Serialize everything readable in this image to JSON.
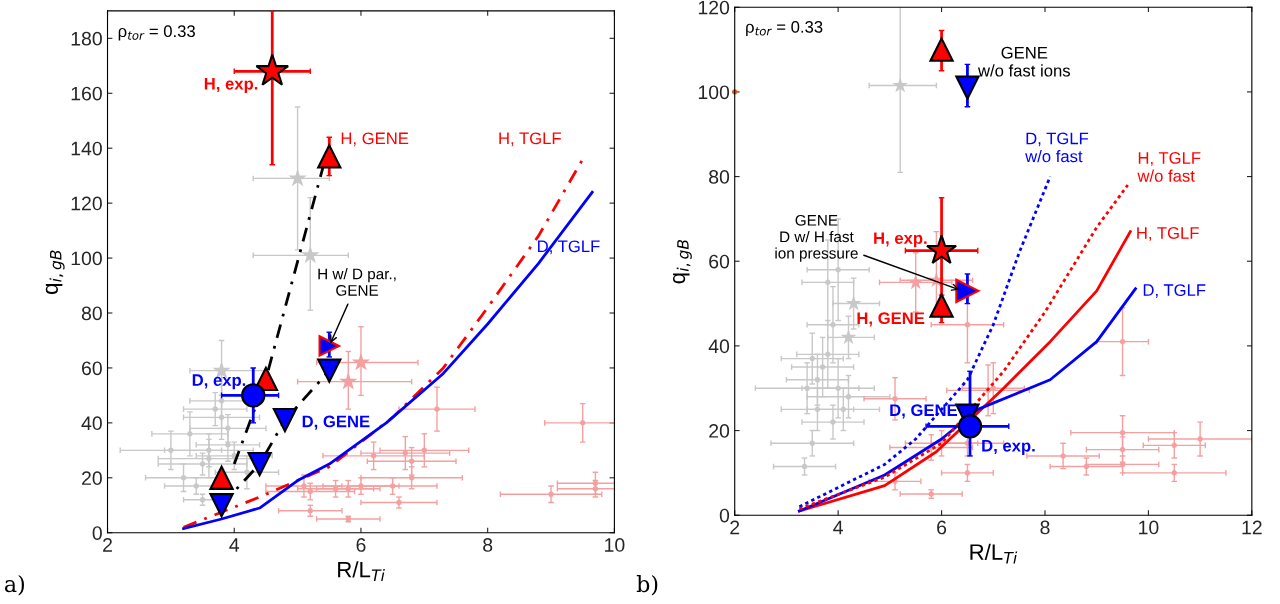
{
  "chart_data": [
    {
      "type": "scatter",
      "xlabel": "R/L$_{Ti}$",
      "ylabel": "q$_{i,gB}$",
      "xlim": [
        2,
        10
      ],
      "xticks": [
        2,
        4,
        6,
        8,
        10
      ],
      "ylim": [
        0,
        190
      ],
      "yticks": [
        0,
        20,
        40,
        60,
        80,
        100,
        120,
        140,
        160,
        180
      ],
      "grid": false,
      "legend": false,
      "annotations": [
        "ρ$_{tor}$ = 0.33",
        "a)",
        {
          "text": "H w/ D par.,\nGENE",
          "x": 5.5,
          "y": 68
        }
      ],
      "series": [
        {
          "type": "scatter",
          "marker": "circle",
          "color": "#c8c8c8",
          "x": [
            3.5,
            3.4,
            3.0,
            3.3,
            3.6,
            3.7,
            3.8,
            3.9,
            3.6,
            3.9,
            4.0,
            3.5,
            4.2,
            3.2,
            3.8
          ],
          "values": [
            12,
            17,
            30,
            36,
            30,
            45,
            42,
            38,
            27,
            32,
            28,
            25,
            22,
            20,
            48
          ],
          "errors": [
            2,
            3,
            7,
            8,
            6,
            6,
            8,
            5,
            7,
            6,
            5,
            4,
            6,
            5,
            10
          ],
          "xerrors": [
            0.3,
            0.5,
            0.8,
            0.6,
            0.7,
            0.5,
            0.6,
            0.6,
            0.8,
            0.5,
            0.6,
            0.7,
            0.5,
            0.6,
            0.5
          ]
        },
        {
          "type": "scatter",
          "marker": "circle",
          "color": "#f4a0a0",
          "x": [
            5.1,
            5.2,
            5.2,
            5.6,
            5.8,
            5.8,
            6.0,
            6.5,
            6.6,
            6.8,
            6.7,
            6.8,
            7.0,
            9.5,
            9.0,
            9.7,
            9.7,
            6.2,
            7.2
          ],
          "values": [
            17,
            8,
            15,
            16,
            5,
            16,
            17,
            17,
            11,
            20,
            29,
            26,
            30,
            40,
            14,
            16,
            18,
            28,
            45
          ],
          "errors": [
            4,
            2,
            3,
            3,
            1,
            3,
            3,
            3,
            2,
            4,
            6,
            5,
            6,
            7,
            3,
            3,
            4,
            5,
            8
          ],
          "xerrors": [
            0.6,
            0.5,
            0.7,
            0.6,
            0.5,
            0.5,
            0.6,
            0.7,
            0.6,
            0.8,
            0.7,
            0.7,
            0.7,
            0.6,
            0.8,
            0.6,
            0.6,
            0.8,
            0.6
          ]
        },
        {
          "type": "scatter",
          "marker": "star",
          "color": "#c8c8c8",
          "x": [
            5.0,
            5.2,
            3.8
          ],
          "values": [
            129,
            101,
            59
          ],
          "errors": [
            [
              103,
              155
            ],
            [
              81,
              122
            ],
            [
              50,
              70
            ]
          ],
          "xerrors": [
            [
              4.3,
              5.5
            ],
            [
              4.3,
              5.8
            ],
            [
              3.3,
              4.5
            ]
          ]
        },
        {
          "type": "scatter",
          "marker": "star",
          "color": "#f4a0a0",
          "x": [
            5.8,
            6.0
          ],
          "values": [
            55,
            62
          ],
          "errors": [
            [
              45,
              66
            ],
            [
              50,
              75
            ]
          ],
          "xerrors": [
            [
              5.0,
              6.8
            ],
            [
              5.3,
              6.9
            ]
          ]
        },
        {
          "type": "line",
          "line_style": "dashed",
          "color": "#000000",
          "x": [
            4.0,
            4.5,
            5.4
          ],
          "values": [
            25,
            56,
            133
          ]
        },
        {
          "type": "line",
          "line_style": "dashed",
          "color": "#000000",
          "x": [
            3.8,
            4.4,
            4.8,
            5.5
          ],
          "values": [
            10,
            25,
            41,
            59
          ]
        },
        {
          "type": "line",
          "line_style": "dashed",
          "name": "H, TGLF",
          "color": "#ff0000",
          "x": [
            3.2,
            4.4,
            5.5,
            6.5,
            7.3,
            8.0,
            8.8,
            9.5
          ],
          "values": [
            2,
            13,
            24,
            42,
            60,
            82,
            108,
            136
          ]
        },
        {
          "type": "line",
          "line_style": "solid",
          "name": "D, TGLF",
          "color": "#0000ff",
          "x": [
            3.2,
            3.8,
            4.4,
            5.0,
            5.5,
            6.4,
            7.3,
            8.0,
            8.8,
            9.65
          ],
          "values": [
            1.5,
            5,
            9,
            19,
            25,
            40,
            58,
            76,
            98,
            124
          ]
        },
        {
          "type": "scatter",
          "marker": "star",
          "name": "H, exp.",
          "color": "#ff0000",
          "x": [
            4.6
          ],
          "values": [
            168
          ],
          "errors": [
            [
              134,
              190
            ]
          ],
          "xerrors": [
            [
              4.0,
              5.2
            ]
          ]
        },
        {
          "type": "scatter",
          "marker": "triangle",
          "name": "H, GENE",
          "color": "#ff0000",
          "x": [
            5.5,
            4.5,
            3.8
          ],
          "values": [
            137,
            56,
            20
          ],
          "errors": [
            [
              130,
              144
            ],
            [
              52,
              58
            ],
            [
              17,
              22
            ]
          ]
        },
        {
          "type": "scatter",
          "marker": "triangle_down",
          "name": "D, GENE",
          "color": "#0000ff",
          "x": [
            4.8,
            3.8,
            4.4,
            5.5
          ],
          "values": [
            41,
            10,
            25,
            59
          ]
        },
        {
          "type": "scatter",
          "marker": "triangle_right",
          "color": "#0000ff",
          "x": [
            5.5
          ],
          "values": [
            68
          ],
          "errors": [
            [
              64,
              73
            ]
          ]
        },
        {
          "type": "scatter",
          "marker": "circle",
          "name": "D, exp.",
          "color": "#0000ff",
          "x": [
            4.3
          ],
          "values": [
            50
          ],
          "errors": [
            [
              40,
              60
            ]
          ],
          "xerrors": [
            [
              3.8,
              4.7
            ]
          ]
        }
      ]
    },
    {
      "type": "scatter",
      "xlabel": "R/L$_{Ti}$",
      "ylabel": "q$_{i,gB}$",
      "xlim": [
        2,
        12
      ],
      "xticks": [
        2,
        4,
        6,
        8,
        10,
        12
      ],
      "ylim": [
        0,
        120
      ],
      "yticks": [
        0,
        20,
        40,
        60,
        80,
        100,
        120
      ],
      "grid": false,
      "legend": false,
      "annotations": [
        "ρ$_{tor}$ = 0.33",
        "b)",
        "GENE\nw/o fast ions",
        {
          "text": "GENE\nD w/ H fast\nion pressure",
          "x": 6.4,
          "y": 53
        }
      ],
      "series": [
        {
          "type": "scatter",
          "marker": "circle",
          "color": "#c8c8c8",
          "x": [
            3.35,
            3.5,
            3.4,
            3.6,
            3.7,
            3.8,
            3.9,
            4.0,
            3.8,
            4.2,
            3.6,
            4.0,
            3.9,
            3.5,
            4.1
          ],
          "values": [
            11.5,
            17,
            30,
            25,
            35,
            38,
            45,
            58,
            55,
            28,
            32,
            30,
            22,
            37,
            25
          ],
          "errors": [
            2,
            3,
            6,
            5,
            7,
            8,
            9,
            12,
            10,
            5,
            6,
            7,
            4,
            6,
            5
          ],
          "xerrors": [
            0.6,
            0.8,
            1.0,
            0.7,
            0.6,
            0.6,
            0.5,
            0.6,
            0.5,
            0.8,
            0.6,
            0.7,
            0.6,
            0.6,
            0.7
          ]
        },
        {
          "type": "scatter",
          "marker": "circle",
          "color": "#f4a0a0",
          "x": [
            5.1,
            5.8,
            5.1,
            6.5,
            6.5,
            6.5,
            6.0,
            5.8,
            6.9,
            7.0,
            8.35,
            8.8,
            9.5,
            9.5,
            9.5,
            9.5,
            10.5,
            10.5,
            11.0
          ],
          "values": [
            27.5,
            5,
            8,
            45,
            10,
            17,
            17,
            16,
            29.5,
            30,
            14,
            11.5,
            19.5,
            15.5,
            12,
            41,
            16.5,
            10,
            18
          ],
          "errors": [
            5,
            1,
            2,
            9,
            2,
            3,
            3,
            3,
            6,
            6,
            3,
            2,
            4,
            3,
            2,
            8,
            3,
            2,
            4
          ],
          "xerrors": [
            0.6,
            0.6,
            0.5,
            0.7,
            0.5,
            0.7,
            0.7,
            0.8,
            0.8,
            0.6,
            0.7,
            0.7,
            1.0,
            0.7,
            0.7,
            0.5,
            0.6,
            1.0,
            1.0
          ]
        },
        {
          "type": "scatter",
          "marker": "star",
          "color": "#c8c8c8",
          "x": [
            5.2,
            4.3,
            4.2
          ],
          "values": [
            101.5,
            50,
            42
          ],
          "errors": [
            [
              81,
              121
            ],
            [
              44,
              56
            ],
            [
              37,
              47
            ]
          ],
          "xerrors": [
            [
              4.6,
              5.9
            ],
            [
              3.9,
              4.8
            ],
            [
              3.8,
              4.7
            ]
          ]
        },
        {
          "type": "scatter",
          "marker": "star",
          "color": "#f4a0a0",
          "x": [
            5.5,
            5.9
          ],
          "values": [
            55,
            55.5
          ],
          "errors": [
            [
              48,
              62
            ],
            [
              48,
              67
            ]
          ],
          "xerrors": [
            [
              4.8,
              6.2
            ],
            [
              5.2,
              6.6
            ]
          ]
        },
        {
          "type": "scatter",
          "marker": "circle",
          "color": "#e06020",
          "x": [
            2.0
          ],
          "values": [
            100
          ]
        },
        {
          "type": "line",
          "line_style": "dotted",
          "name": "D, TGLF\nw/o fast",
          "color": "#0000ff",
          "x": [
            3.25,
            4.9,
            5.5,
            6.0,
            6.5,
            7.0,
            7.5,
            8.1
          ],
          "values": [
            2,
            12,
            18,
            25,
            32,
            45,
            62,
            80
          ]
        },
        {
          "type": "line",
          "line_style": "dotted",
          "name": "H, TGLF\nw/o fast",
          "color": "#ff0000",
          "x": [
            3.25,
            4.9,
            6.0,
            7.2,
            8.0,
            9.0,
            9.6
          ],
          "values": [
            1.5,
            9,
            17,
            34,
            48,
            68,
            78
          ]
        },
        {
          "type": "line",
          "line_style": "solid",
          "name": "H, TGLF",
          "color": "#ff0000",
          "x": [
            3.25,
            4.9,
            5.9,
            7.2,
            8.1,
            9.0,
            9.65
          ],
          "values": [
            1,
            7,
            15,
            30,
            41,
            53,
            67
          ]
        },
        {
          "type": "line",
          "line_style": "solid",
          "name": "D, TGLF",
          "color": "#0000ff",
          "x": [
            3.25,
            4.9,
            6.0,
            6.7,
            8.1,
            9.0,
            9.75
          ],
          "values": [
            1,
            9.5,
            18,
            25,
            32,
            41,
            53.5
          ]
        },
        {
          "type": "scatter",
          "marker": "triangle",
          "color": "#ff0000",
          "x": [
            6.0
          ],
          "values": [
            110
          ],
          "errors": [
            [
              105,
              114.5
            ]
          ]
        },
        {
          "type": "scatter",
          "marker": "triangle_down",
          "color": "#0000ff",
          "x": [
            6.5
          ],
          "values": [
            101
          ],
          "errors": [
            [
              96.5,
              106.5
            ]
          ]
        },
        {
          "type": "scatter",
          "marker": "star",
          "name": "H, exp.",
          "color": "#ff0000",
          "x": [
            6.0
          ],
          "values": [
            62.5
          ],
          "errors": [
            [
              48,
              75
            ]
          ],
          "xerrors": [
            [
              5.3,
              6.7
            ]
          ]
        },
        {
          "type": "scatter",
          "marker": "triangle",
          "name": "H, GENE",
          "color": "#ff0000",
          "x": [
            6.0
          ],
          "values": [
            49.5
          ],
          "errors": [
            [
              45.5,
              52
            ]
          ]
        },
        {
          "type": "scatter",
          "marker": "triangle_right",
          "color": "#0000ff",
          "x": [
            6.5
          ],
          "values": [
            53
          ],
          "errors": [
            [
              50,
              57
            ]
          ]
        },
        {
          "type": "scatter",
          "marker": "triangle_down",
          "name": "D, GENE",
          "color": "#0000ff",
          "x": [
            6.5
          ],
          "values": [
            23.5
          ]
        },
        {
          "type": "scatter",
          "marker": "circle",
          "name": "D, exp.",
          "color": "#0000ff",
          "x": [
            6.55
          ],
          "values": [
            21
          ],
          "errors": [
            [
              14,
              34
            ]
          ],
          "xerrors": [
            [
              5.7,
              7.3
            ]
          ]
        }
      ]
    }
  ]
}
